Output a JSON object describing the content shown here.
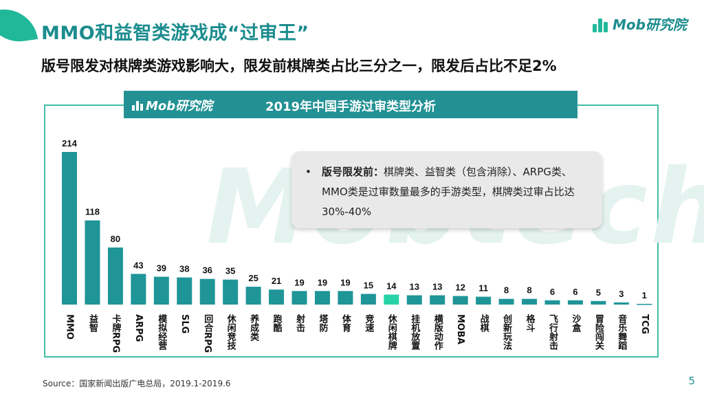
{
  "header": {
    "title": "MMO和益智类游戏成“过审王”",
    "subtitle": "版号限发对棋牌类游戏影响大，限发前棋牌类占比三分之一，限发后占比不足2%",
    "brand": "Mob研究院"
  },
  "watermark": "Mobtech",
  "note": {
    "label": "版号限发前：",
    "text": "棋牌类、益智类（包含消除）、ARPG类、MMO类是过审数量最多的手游类型，棋牌类过审占比达30%-40%"
  },
  "footer": {
    "source": "Source：国家新闻出版广电总局，2019.1-2019.6",
    "page": "5"
  },
  "colors": {
    "bar": "#1f9598",
    "highlight": "#27d3a6",
    "accent": "#1c8c8e"
  },
  "chart_data": {
    "type": "bar",
    "title": "2019年中国手游过审类型分析",
    "logo": "Mob研究院",
    "categories": [
      "MMO",
      "益智",
      "卡牌RPG",
      "ARPG",
      "模拟经营",
      "SLG",
      "回合RPG",
      "休闲竞技",
      "养成类",
      "跑酷",
      "射击",
      "塔防",
      "体育",
      "竞速",
      "休闲棋牌",
      "挂机放置",
      "横版动作",
      "MOBA",
      "战棋",
      "创新玩法",
      "格斗",
      "飞行射击",
      "沙盒",
      "冒险闯关",
      "音乐舞蹈",
      "TCG"
    ],
    "values": [
      214,
      118,
      80,
      43,
      39,
      38,
      36,
      35,
      25,
      21,
      19,
      19,
      19,
      15,
      14,
      13,
      13,
      12,
      11,
      8,
      8,
      6,
      6,
      5,
      3,
      1
    ],
    "highlight_index": 14,
    "ylim": [
      0,
      214
    ]
  }
}
